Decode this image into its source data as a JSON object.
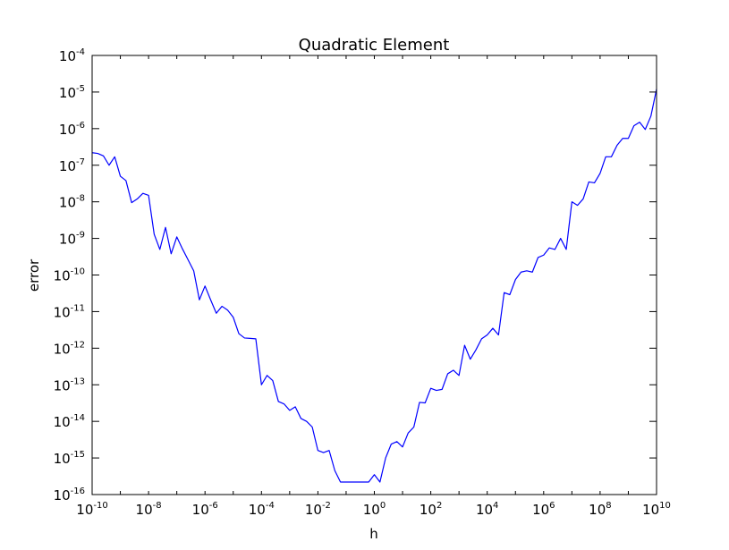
{
  "chart_data": {
    "type": "line",
    "title": "Quadratic Element",
    "xlabel": "h",
    "ylabel": "error",
    "xscale": "log",
    "yscale": "log",
    "xlim": [
      1e-10,
      10000000000.0
    ],
    "ylim": [
      1e-16,
      0.0001
    ],
    "grid": false,
    "line_color": "#0000ff",
    "x_ticks": [
      {
        "base": "10",
        "exp": "-10",
        "value": 1e-10
      },
      {
        "base": "10",
        "exp": "-8",
        "value": 1e-08
      },
      {
        "base": "10",
        "exp": "-6",
        "value": 1e-06
      },
      {
        "base": "10",
        "exp": "-4",
        "value": 0.0001
      },
      {
        "base": "10",
        "exp": "-2",
        "value": 0.01
      },
      {
        "base": "10",
        "exp": "0",
        "value": 1
      },
      {
        "base": "10",
        "exp": "2",
        "value": 100.0
      },
      {
        "base": "10",
        "exp": "4",
        "value": 10000.0
      },
      {
        "base": "10",
        "exp": "6",
        "value": 1000000.0
      },
      {
        "base": "10",
        "exp": "8",
        "value": 100000000.0
      },
      {
        "base": "10",
        "exp": "10",
        "value": 10000000000.0
      }
    ],
    "y_ticks": [
      {
        "base": "10",
        "exp": "-16",
        "value": 1e-16
      },
      {
        "base": "10",
        "exp": "-15",
        "value": 1e-15
      },
      {
        "base": "10",
        "exp": "-14",
        "value": 1e-14
      },
      {
        "base": "10",
        "exp": "-13",
        "value": 1e-13
      },
      {
        "base": "10",
        "exp": "-12",
        "value": 1e-12
      },
      {
        "base": "10",
        "exp": "-11",
        "value": 1e-11
      },
      {
        "base": "10",
        "exp": "-10",
        "value": 1e-10
      },
      {
        "base": "10",
        "exp": "-9",
        "value": 1e-09
      },
      {
        "base": "10",
        "exp": "-8",
        "value": 1e-08
      },
      {
        "base": "10",
        "exp": "-7",
        "value": 1e-07
      },
      {
        "base": "10",
        "exp": "-6",
        "value": 1e-06
      },
      {
        "base": "10",
        "exp": "-5",
        "value": 1e-05
      },
      {
        "base": "10",
        "exp": "-4",
        "value": 0.0001
      }
    ],
    "series": [
      {
        "x": [
          1e-10,
          1.58e-10,
          2.51e-10,
          3.98e-10,
          6.31e-10,
          1e-09,
          1.58e-09,
          2.51e-09,
          3.98e-09,
          6.31e-09,
          1e-08,
          1.58e-08,
          2.51e-08,
          3.98e-08,
          6.31e-08,
          1e-07,
          1.58e-07,
          2.51e-07,
          3.98e-07,
          6.31e-07,
          1e-06,
          1.58e-06,
          2.51e-06,
          3.98e-06,
          6.31e-06,
          1e-05,
          1.58e-05,
          2.51e-05,
          3.98e-05,
          6.31e-05,
          0.0001,
          0.000158,
          0.000251,
          0.000398,
          0.000631,
          0.001,
          0.00158,
          0.00251,
          0.00398,
          0.00631,
          0.01,
          0.0158,
          0.0251,
          0.0398,
          0.0631,
          0.1,
          0.158,
          0.251,
          0.398,
          0.631,
          1,
          1.58,
          2.51,
          3.98,
          6.31,
          10,
          15.8,
          25.1,
          39.8,
          63.1,
          100,
          158,
          251,
          398,
          631,
          1000,
          1580,
          2510,
          3980,
          6310,
          10000.0,
          15800.0,
          25100.0,
          39800.0,
          63100.0,
          100000.0,
          158000.0,
          251000.0,
          398000.0,
          631000.0,
          1000000.0,
          1580000.0,
          2510000.0,
          3980000.0,
          6310000.0,
          10000000.0,
          15800000.0,
          25100000.0,
          39800000.0,
          63100000.0,
          100000000.0,
          158000000.0,
          251000000.0,
          398000000.0,
          631000000.0,
          1000000000.0,
          1580000000.0,
          2510000000.0,
          3980000000.0,
          6310000000.0,
          10000000000.0
        ],
        "y": [
          2.2e-07,
          2.1e-07,
          1.8e-07,
          1e-07,
          1.7e-07,
          5e-08,
          3.8e-08,
          9.5e-09,
          1.2e-08,
          1.7e-08,
          1.5e-08,
          1.3e-09,
          5e-10,
          2e-09,
          3.8e-10,
          1.1e-09,
          5.2e-10,
          2.6e-10,
          1.3e-10,
          2.1e-11,
          5e-11,
          2.1e-11,
          9e-12,
          1.4e-11,
          1.1e-11,
          7e-12,
          2.5e-12,
          1.9e-12,
          1.85e-12,
          1.8e-12,
          1e-13,
          1.8e-13,
          1.3e-13,
          3.5e-14,
          3e-14,
          2e-14,
          2.5e-14,
          1.2e-14,
          1e-14,
          7e-15,
          1.6e-15,
          1.4e-15,
          1.6e-15,
          4.5e-16,
          2.2e-16,
          2.2e-16,
          2.2e-16,
          2.2e-16,
          2.2e-16,
          2.2e-16,
          3.5e-16,
          2.2e-16,
          1e-15,
          2.4e-15,
          2.8e-15,
          2e-15,
          4.8e-15,
          7e-15,
          3.3e-14,
          3.2e-14,
          8e-14,
          7e-14,
          7.5e-14,
          2e-13,
          2.5e-13,
          1.8e-13,
          1.2e-12,
          5e-13,
          9e-13,
          1.8e-12,
          2.3e-12,
          3.5e-12,
          2.3e-12,
          3.3e-11,
          2.9e-11,
          7.5e-11,
          1.2e-10,
          1.3e-10,
          1.2e-10,
          3e-10,
          3.5e-10,
          5.5e-10,
          5e-10,
          1e-09,
          5e-10,
          1e-08,
          8e-09,
          1.2e-08,
          3.5e-08,
          3.3e-08,
          6e-08,
          1.7e-07,
          1.7e-07,
          3.5e-07,
          5.4e-07,
          5.4e-07,
          1.2e-06,
          1.5e-06,
          9.5e-07,
          2.2e-06,
          1.2e-05
        ]
      }
    ]
  }
}
